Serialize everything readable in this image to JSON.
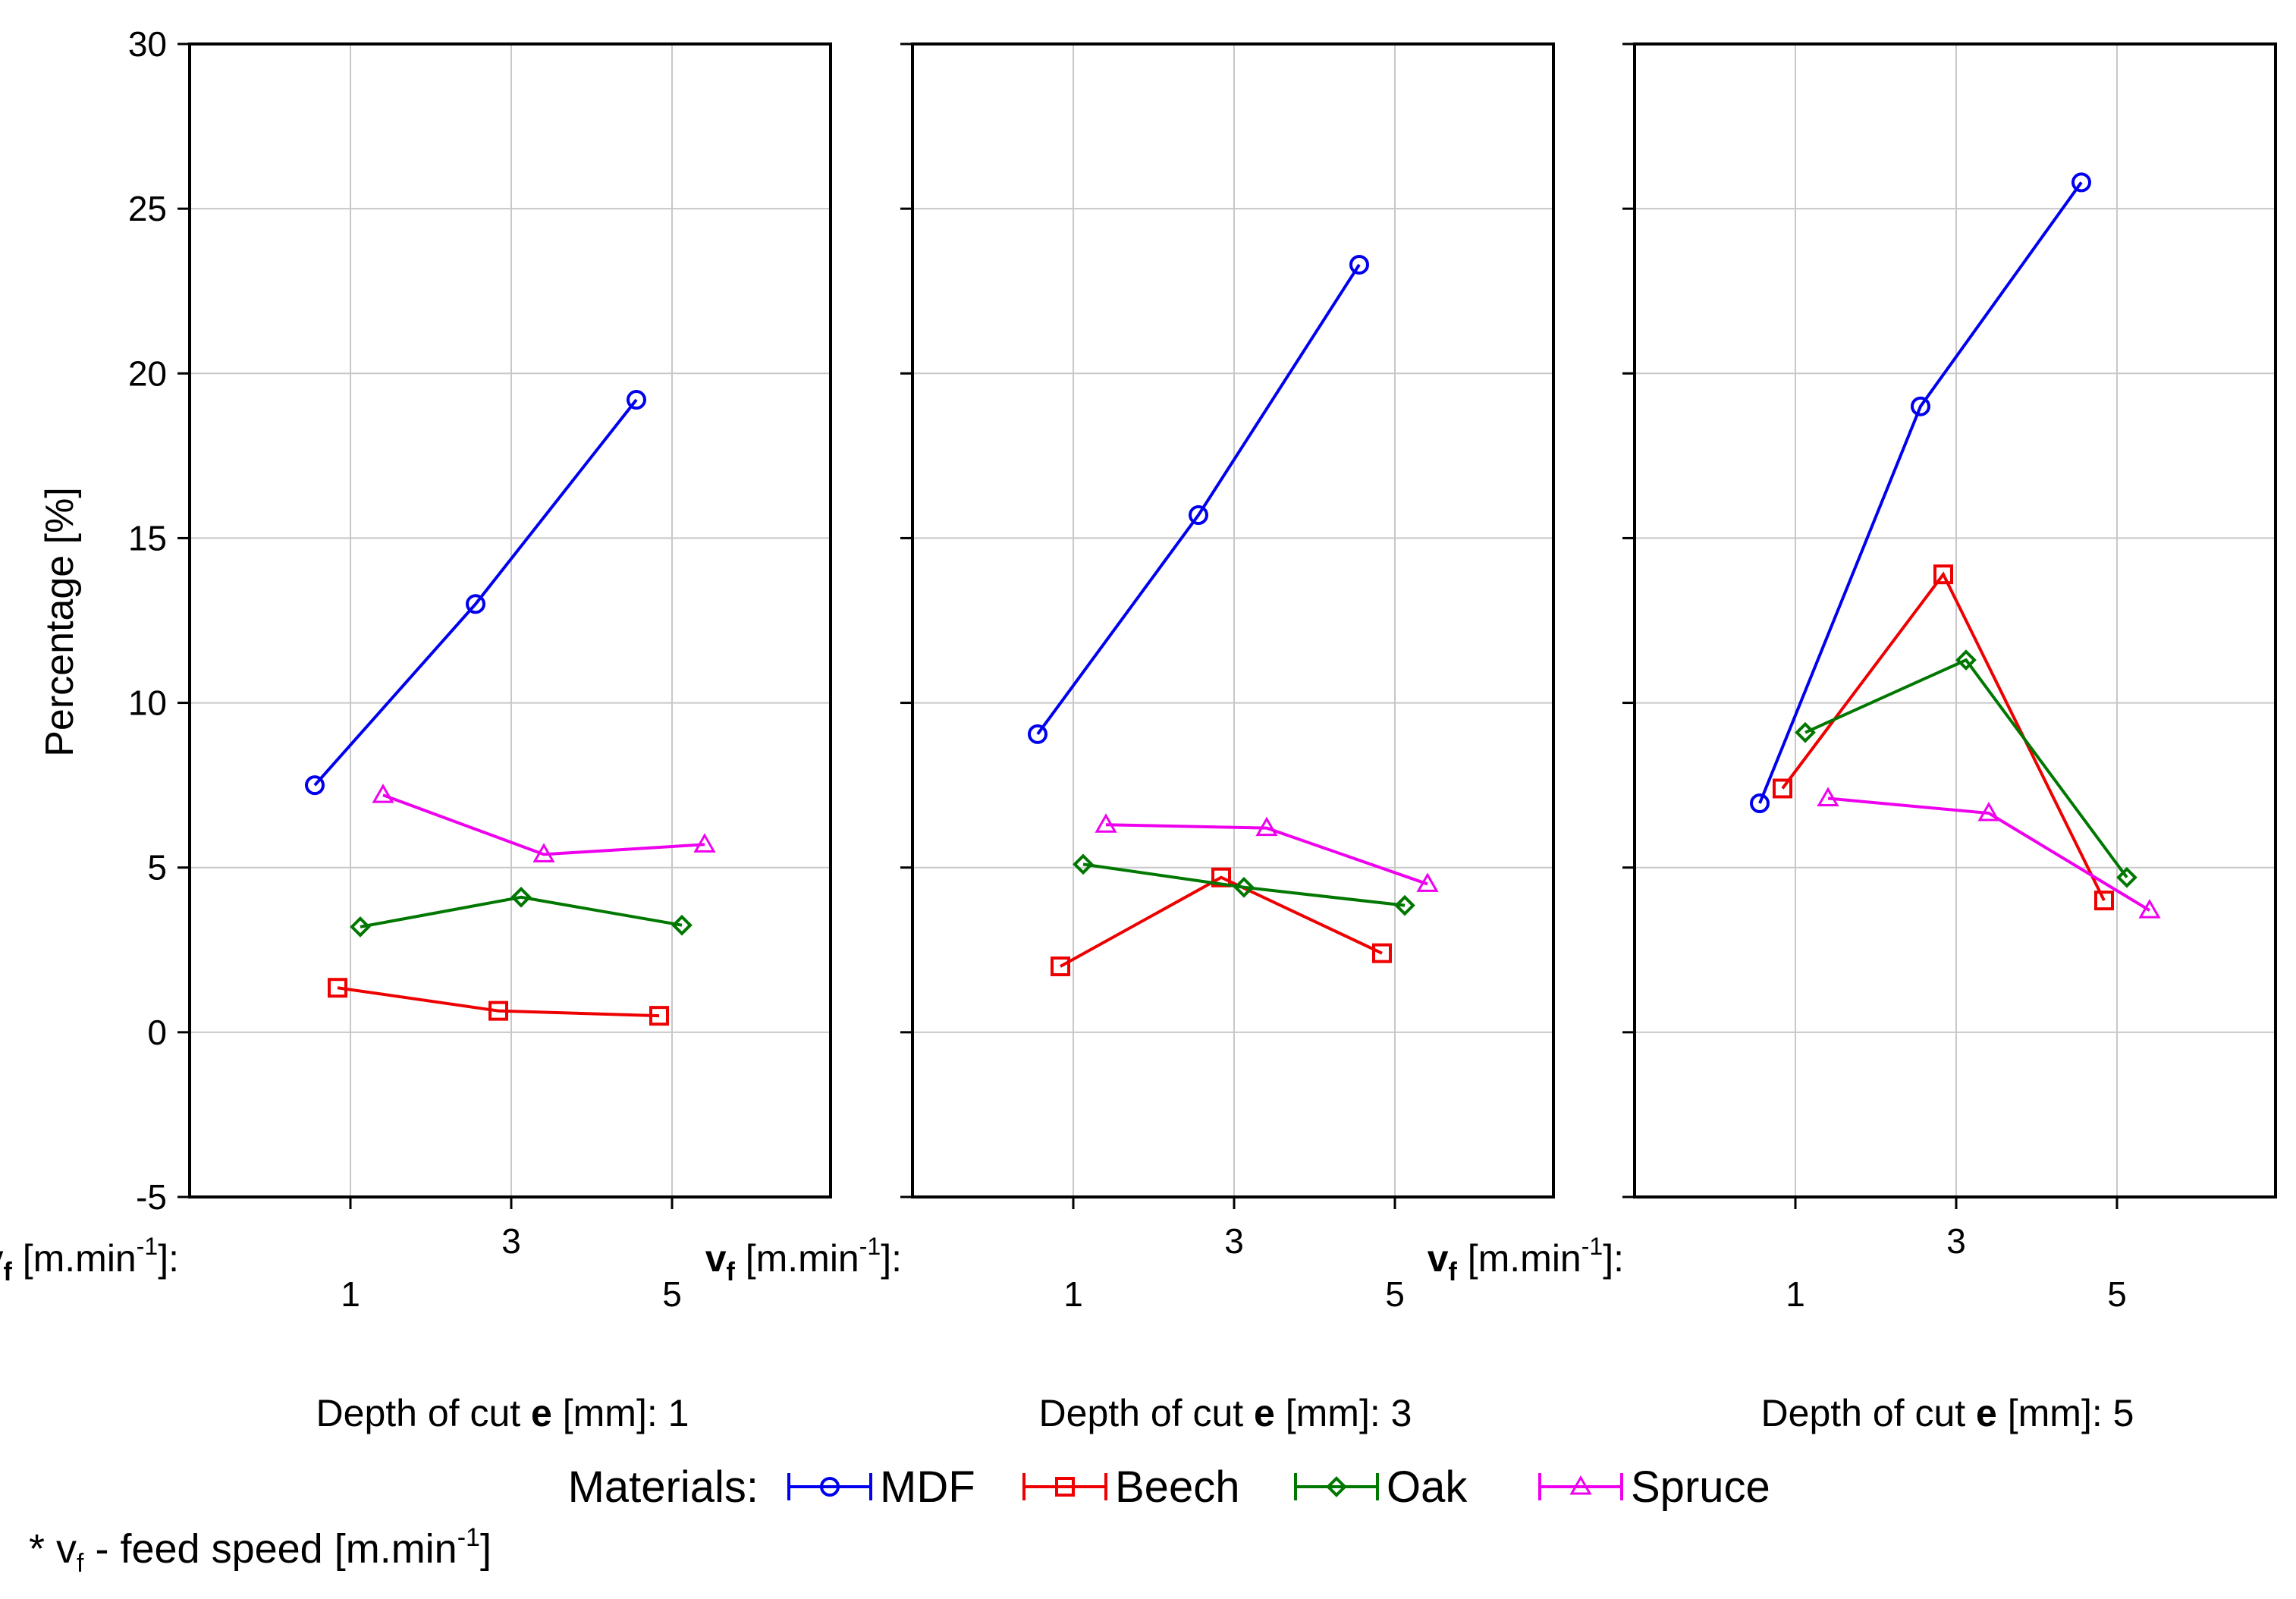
{
  "chart_data": {
    "type": "line",
    "ylabel": "Percentage [%]",
    "ylim": [
      -5,
      30
    ],
    "yticks": [
      -5,
      0,
      5,
      10,
      15,
      20,
      25,
      30
    ],
    "categories": [
      1,
      3,
      5
    ],
    "xaxis_prefix_bold": "v",
    "xaxis_prefix_sub": "f",
    "xaxis_prefix_unit": "[m.min",
    "xaxis_prefix_exp": "-1",
    "xaxis_prefix_end": "]:",
    "panels": [
      {
        "label_pre": "Depth of cut ",
        "label_bold": "e",
        "label_post": " [mm]: 1",
        "series": {
          "MDF": [
            7.5,
            13.0,
            19.2
          ],
          "Beech": [
            1.35,
            0.65,
            0.5
          ],
          "Oak": [
            3.2,
            4.1,
            3.25
          ],
          "Spruce": [
            7.2,
            5.4,
            5.7
          ]
        }
      },
      {
        "label_pre": "Depth of cut ",
        "label_bold": "e",
        "label_post": " [mm]: 3",
        "series": {
          "MDF": [
            9.05,
            15.7,
            23.3
          ],
          "Beech": [
            2.0,
            4.7,
            2.4
          ],
          "Oak": [
            5.1,
            4.4,
            3.85
          ],
          "Spruce": [
            6.3,
            6.2,
            4.5
          ]
        }
      },
      {
        "label_pre": "Depth of cut ",
        "label_bold": "e",
        "label_post": " [mm]:  5",
        "series": {
          "MDF": [
            6.95,
            19.0,
            25.8
          ],
          "Beech": [
            7.4,
            13.9,
            4.0
          ],
          "Oak": [
            9.1,
            11.3,
            4.7
          ],
          "Spruce": [
            7.1,
            6.65,
            3.7
          ]
        }
      }
    ],
    "series_meta": [
      {
        "name": "MDF",
        "color": "#0000ee",
        "marker": "circle"
      },
      {
        "name": "Beech",
        "color": "#ee0000",
        "marker": "square"
      },
      {
        "name": "Oak",
        "color": "#007700",
        "marker": "diamond"
      },
      {
        "name": "Spruce",
        "color": "#ee00ee",
        "marker": "triangle"
      }
    ],
    "legend_title": "Materials:",
    "footnote_pre": "* v",
    "footnote_sub": "f",
    "footnote_mid": " - feed speed  [m.min",
    "footnote_exp": "-1",
    "footnote_end": "]"
  }
}
